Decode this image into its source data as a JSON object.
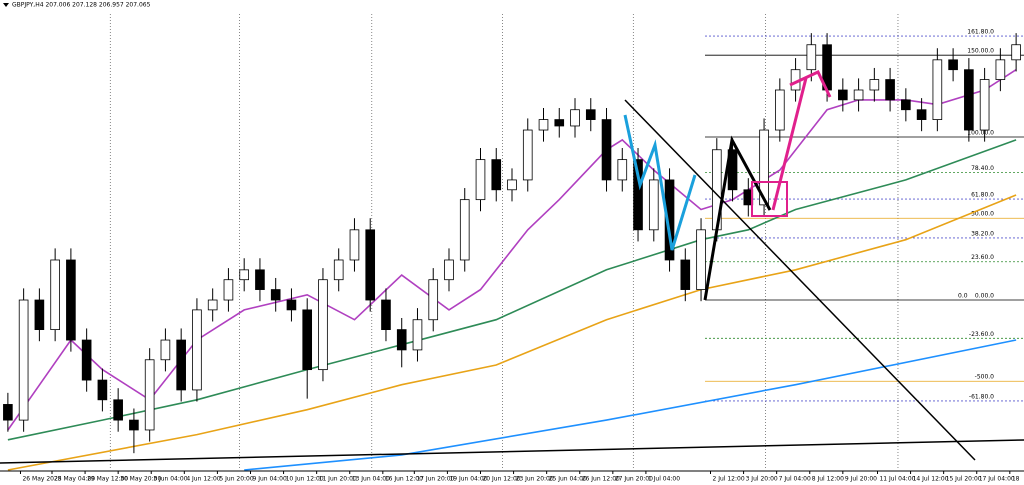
{
  "chart_data": {
    "type": "candlestick",
    "header": "GBPJPY,H4  207.006 207.128 206.957 207.065",
    "open": [
      200.8,
      200.53,
      202.6,
      202.09,
      203.29,
      201.91,
      201.22,
      200.88,
      200.53,
      200.36,
      201.57,
      201.91,
      201.05,
      202.43,
      202.6,
      202.95,
      203.12,
      202.78,
      202.6,
      202.43,
      201.4,
      202.95,
      203.29,
      203.81,
      202.6,
      202.09,
      201.74,
      202.26,
      202.95,
      203.29,
      204.33,
      205.02,
      204.5,
      204.67,
      205.53,
      205.71,
      205.6,
      205.88,
      205.71,
      204.67,
      205.02,
      203.81,
      204.67,
      203.29,
      202.78,
      203.81,
      205.19,
      204.5,
      204.24,
      205.53,
      206.22,
      206.57,
      207.0,
      206.22,
      206.05,
      206.22,
      206.4,
      206.05,
      205.88,
      205.71,
      206.74,
      206.57,
      205.53,
      206.4,
      206.74
    ],
    "high": [
      201.0,
      202.8,
      202.8,
      203.49,
      203.49,
      202.11,
      201.42,
      201.08,
      200.73,
      201.77,
      202.11,
      202.11,
      202.63,
      202.8,
      203.15,
      203.32,
      203.32,
      202.98,
      202.8,
      202.63,
      203.15,
      203.49,
      204.01,
      204.01,
      202.8,
      202.29,
      202.46,
      203.15,
      203.49,
      204.53,
      205.22,
      205.22,
      204.87,
      205.73,
      205.91,
      205.91,
      206.08,
      206.08,
      205.91,
      205.22,
      205.22,
      204.87,
      204.87,
      203.49,
      204.01,
      205.39,
      205.39,
      204.7,
      205.73,
      206.42,
      206.77,
      207.2,
      207.2,
      206.42,
      206.42,
      206.6,
      206.6,
      206.25,
      206.08,
      206.94,
      206.94,
      206.77,
      206.6,
      206.94,
      207.2
    ],
    "low": [
      200.33,
      200.33,
      201.89,
      201.89,
      201.71,
      201.02,
      200.68,
      200.33,
      199.96,
      200.16,
      201.37,
      200.85,
      200.85,
      202.23,
      202.4,
      202.75,
      202.58,
      202.4,
      202.23,
      200.9,
      201.2,
      202.75,
      203.09,
      202.4,
      201.89,
      201.44,
      201.54,
      202.06,
      202.75,
      203.09,
      204.13,
      204.3,
      204.3,
      204.47,
      205.33,
      205.4,
      205.4,
      205.51,
      204.47,
      204.47,
      203.61,
      203.61,
      203.09,
      202.58,
      202.58,
      203.61,
      204.3,
      204.04,
      204.04,
      205.33,
      206.02,
      206.37,
      206.02,
      205.85,
      205.85,
      206.02,
      205.85,
      205.68,
      205.51,
      205.51,
      206.37,
      205.33,
      205.33,
      206.2,
      206.54
    ],
    "close": [
      200.53,
      202.6,
      202.09,
      203.29,
      201.91,
      201.22,
      200.88,
      200.53,
      200.36,
      201.57,
      201.91,
      201.05,
      202.43,
      202.6,
      202.95,
      203.12,
      202.78,
      202.6,
      202.43,
      201.4,
      202.95,
      203.29,
      203.81,
      202.6,
      202.09,
      201.74,
      202.26,
      202.95,
      203.29,
      204.33,
      205.02,
      204.5,
      204.67,
      205.53,
      205.71,
      205.6,
      205.88,
      205.71,
      204.67,
      205.02,
      203.81,
      204.67,
      203.29,
      202.78,
      203.81,
      205.19,
      204.5,
      204.24,
      205.53,
      206.22,
      206.57,
      207.0,
      206.22,
      206.05,
      206.22,
      206.4,
      206.05,
      205.88,
      205.71,
      206.74,
      206.57,
      205.53,
      206.4,
      206.74,
      207.0
    ],
    "ylim": [
      199.67,
      207.53
    ],
    "xticks": [
      {
        "value": 0.8,
        "label": "26 May 2025"
      },
      {
        "value": 2.8,
        "label": "28 May 04:00"
      },
      {
        "value": 4.9,
        "label": "29 May 12:00"
      },
      {
        "value": 7.0,
        "label": "30 May 20:00"
      },
      {
        "value": 9.1,
        "label": "3 Jun 04:00"
      },
      {
        "value": 11.2,
        "label": "4 Jun 12:00"
      },
      {
        "value": 13.3,
        "label": "5 Jun 20:00"
      },
      {
        "value": 15.4,
        "label": "9 Jun 04:00"
      },
      {
        "value": 17.5,
        "label": "10 Jun 12:00"
      },
      {
        "value": 19.6,
        "label": "11 Jun 20:00"
      },
      {
        "value": 21.7,
        "label": "13 Jun 04:00"
      },
      {
        "value": 23.8,
        "label": "16 Jun 12:00"
      },
      {
        "value": 25.8,
        "label": "17 Jun 20:00"
      },
      {
        "value": 27.9,
        "label": "19 Jun 04:00"
      },
      {
        "value": 30.0,
        "label": "20 Jun 12:00"
      },
      {
        "value": 32.1,
        "label": "23 Jun 20:00"
      },
      {
        "value": 34.2,
        "label": "25 Jun 04:00"
      },
      {
        "value": 36.3,
        "label": "26 Jun 12:00"
      },
      {
        "value": 38.4,
        "label": "27 Jun 20:00"
      },
      {
        "value": 40.5,
        "label": "1 Jul 04:00"
      },
      {
        "value": 44.6,
        "label": "2 Jul 12:00"
      },
      {
        "value": 46.7,
        "label": "3 Jul 20:00"
      },
      {
        "value": 48.8,
        "label": "7 Jul 04:00"
      },
      {
        "value": 50.9,
        "label": "8 Jul 12:00"
      },
      {
        "value": 53.0,
        "label": "9 Jul 20:00"
      },
      {
        "value": 55.2,
        "label": "11 Jul 04:00"
      },
      {
        "value": 57.3,
        "label": "14 Jul 12:00"
      },
      {
        "value": 59.4,
        "label": "15 Jul 20:00"
      },
      {
        "value": 61.5,
        "label": "17 Jul 04:00"
      },
      {
        "value": 63.6,
        "label": "18"
      }
    ],
    "vgrid": [
      6.5,
      14.7,
      23.1,
      31.4,
      39.7,
      48.1,
      56.5
    ],
    "lines": [
      {
        "color": "#b040c0",
        "x": [
          0,
          4,
          6,
          9,
          12,
          15,
          19,
          22,
          25,
          28,
          30,
          33,
          35,
          38,
          39,
          41,
          44,
          46,
          49,
          52,
          54,
          57,
          59,
          62,
          64
        ],
        "values": [
          200.36,
          201.91,
          201.4,
          200.88,
          201.91,
          202.43,
          202.69,
          202.26,
          203.03,
          202.43,
          202.78,
          203.81,
          204.33,
          205.19,
          205.36,
          204.84,
          204.16,
          204.33,
          204.84,
          205.88,
          206.05,
          206.05,
          205.97,
          206.22,
          206.57
        ]
      },
      {
        "color": "#2e8b57",
        "x": [
          0,
          6,
          12,
          19,
          25,
          31,
          38,
          44,
          47,
          50,
          57,
          64
        ],
        "values": [
          200.19,
          200.53,
          200.88,
          201.4,
          201.83,
          202.26,
          203.12,
          203.64,
          203.81,
          204.16,
          204.67,
          205.36
        ]
      },
      {
        "color": "#e8a317",
        "x": [
          0,
          12,
          19,
          25,
          31,
          38,
          44,
          50,
          57,
          64
        ],
        "values": [
          199.67,
          200.28,
          200.71,
          201.14,
          201.48,
          202.26,
          202.78,
          203.12,
          203.64,
          204.41
        ]
      },
      {
        "color": "#1e90ff",
        "x": [
          15,
          25,
          38,
          50,
          64
        ],
        "values": [
          199.67,
          199.93,
          200.53,
          201.14,
          201.91
        ]
      }
    ],
    "fib_start_label": "0.0",
    "fib_levels": [
      {
        "price": 207.15,
        "label": "161.80.0",
        "color": "#5555cc",
        "dash": true
      },
      {
        "price": 206.82,
        "label": "150.00.0",
        "color": "#000000",
        "dash": false
      },
      {
        "price": 205.41,
        "label": "100.00.0",
        "color": "#000000",
        "dash": false
      },
      {
        "price": 204.8,
        "label": "78.40.0",
        "color": "#2e8b2e",
        "dash": true
      },
      {
        "price": 204.34,
        "label": "61.80.0",
        "color": "#5555cc",
        "dash": true
      },
      {
        "price": 204.01,
        "label": "50.00.0",
        "color": "#e8a317",
        "dash": false
      },
      {
        "price": 203.67,
        "label": "38.20.0",
        "color": "#5555cc",
        "dash": true
      },
      {
        "price": 203.26,
        "label": "23.60.0",
        "color": "#2e8b2e",
        "dash": true
      },
      {
        "price": 202.6,
        "label": "0.00.0",
        "color": "#000000",
        "dash": false
      },
      {
        "price": 201.94,
        "label": "-23.60.0",
        "color": "#2e8b2e",
        "dash": true
      },
      {
        "price": 201.2,
        "label": "-500.0",
        "color": "#e8a317",
        "dash": false
      },
      {
        "price": 200.86,
        "label": "-61.80.0",
        "color": "#5555cc",
        "dash": true
      }
    ]
  }
}
